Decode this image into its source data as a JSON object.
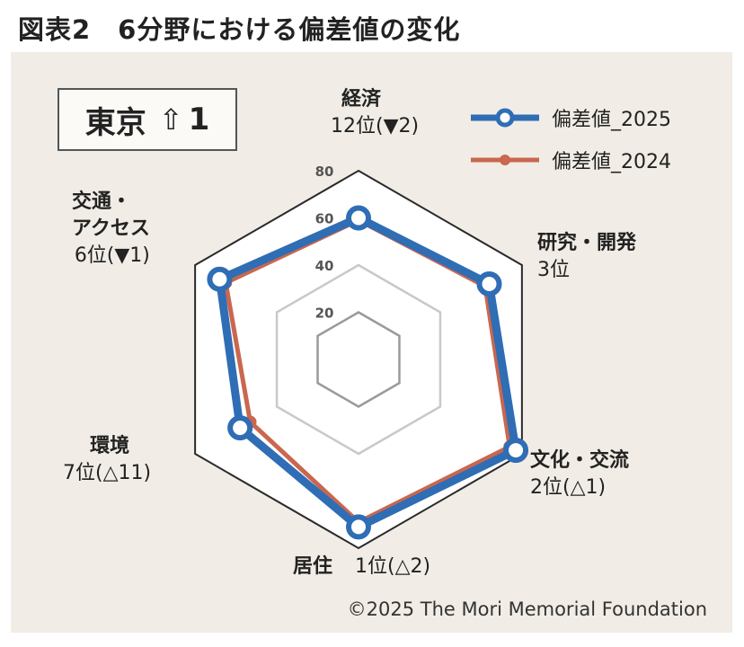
{
  "title": "図表2　6分野における偏差値の変化",
  "city": {
    "name": "東京",
    "arrow": "⇧",
    "rank": "1"
  },
  "legend": [
    {
      "label": "偏差値_2025",
      "color": "#2f6db5"
    },
    {
      "label": "偏差値_2024",
      "color": "#c9674f"
    }
  ],
  "axes": [
    {
      "name": "経済",
      "rank": "12位(▼2)"
    },
    {
      "name": "研究・開発",
      "rank": "3位"
    },
    {
      "name": "文化・交流",
      "rank": "2位(△1)"
    },
    {
      "name": "居住",
      "rank": "1位(△2)"
    },
    {
      "name": "環境",
      "rank": "7位(△11)"
    },
    {
      "name": "交通・アクセス",
      "name_line1": "交通・",
      "name_line2": "アクセス",
      "rank": "6位(▼1)"
    }
  ],
  "credit": "©2025 The Mori Memorial Foundation",
  "chart_data": {
    "type": "radar",
    "categories": [
      "経済",
      "研究・開発",
      "文化・交流",
      "居住",
      "環境",
      "交通・アクセス"
    ],
    "series": [
      {
        "name": "偏差値_2025",
        "values": [
          60,
          64,
          77,
          71,
          58,
          68
        ],
        "color": "#2f6db5"
      },
      {
        "name": "偏差値_2024",
        "values": [
          59,
          62,
          74,
          69,
          53,
          65
        ],
        "color": "#c9674f"
      }
    ],
    "rings": [
      20,
      40,
      60,
      80
    ],
    "ring_labels": [
      "20",
      "40",
      "60",
      "80"
    ],
    "range": [
      0,
      80
    ]
  }
}
